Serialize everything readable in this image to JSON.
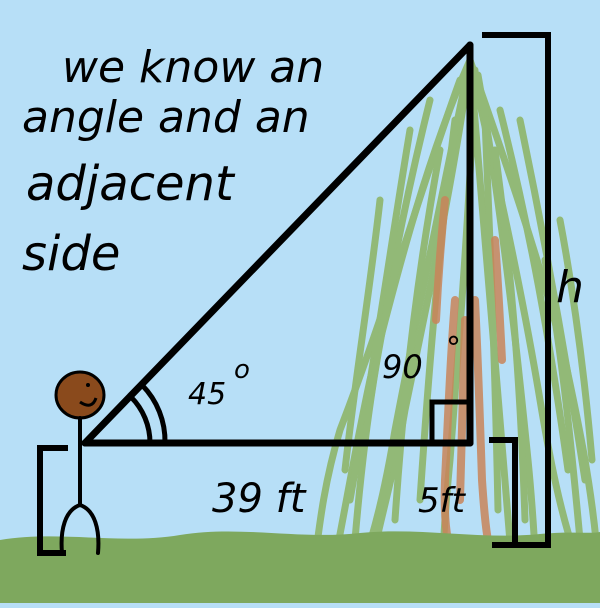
{
  "caption": {
    "line1": "we know an",
    "line2": "angle and an",
    "line3": "adjacent",
    "line4": "side"
  },
  "labels": {
    "angle": "45",
    "degree": "o",
    "right_angle": "90",
    "right_angle_degree": "°",
    "base": "39 ft",
    "person_height": "5ft",
    "height": "h"
  },
  "colors": {
    "sky": "#b7dff7",
    "grass": "#7ea85e",
    "tree_foliage": "#8fb56a",
    "tree_trunk": "#c9855a",
    "head": "#8a4a1c",
    "ink": "#000000"
  }
}
